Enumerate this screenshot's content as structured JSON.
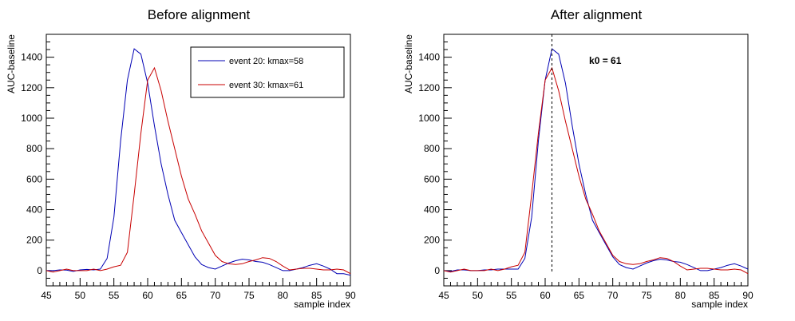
{
  "chart_data": [
    {
      "type": "line",
      "title": "Before alignment",
      "xlabel": "sample index",
      "ylabel": "AUC-baseline",
      "xlim": [
        45,
        90
      ],
      "ylim": [
        -100,
        1550
      ],
      "xticks": [
        45,
        50,
        55,
        60,
        65,
        70,
        75,
        80,
        85,
        90
      ],
      "yticks": [
        0,
        200,
        400,
        600,
        800,
        1000,
        1200,
        1400
      ],
      "legend_position": "top-right",
      "series": [
        {
          "name": "event 20: kmax=58",
          "color": "#0000b4",
          "x": [
            45,
            46,
            47,
            48,
            49,
            50,
            51,
            52,
            53,
            54,
            55,
            56,
            57,
            58,
            59,
            60,
            61,
            62,
            63,
            64,
            65,
            66,
            67,
            68,
            69,
            70,
            71,
            72,
            73,
            74,
            75,
            76,
            77,
            78,
            79,
            80,
            81,
            82,
            83,
            84,
            85,
            86,
            87,
            88,
            89,
            90
          ],
          "y": [
            0,
            0,
            5,
            3,
            -5,
            5,
            8,
            5,
            10,
            80,
            350,
            850,
            1250,
            1455,
            1420,
            1230,
            950,
            700,
            500,
            330,
            250,
            170,
            90,
            40,
            20,
            10,
            30,
            50,
            65,
            75,
            70,
            60,
            55,
            40,
            20,
            0,
            0,
            10,
            20,
            35,
            45,
            30,
            10,
            -20,
            -20,
            -30
          ]
        },
        {
          "name": "event 30: kmax=61",
          "color": "#c80000",
          "x": [
            45,
            46,
            47,
            48,
            49,
            50,
            51,
            52,
            53,
            54,
            55,
            56,
            57,
            58,
            59,
            60,
            61,
            62,
            63,
            64,
            65,
            66,
            67,
            68,
            69,
            70,
            71,
            72,
            73,
            74,
            75,
            76,
            77,
            78,
            79,
            80,
            81,
            82,
            83,
            84,
            85,
            86,
            87,
            88,
            89,
            90
          ],
          "y": [
            0,
            -10,
            0,
            10,
            0,
            0,
            0,
            10,
            0,
            10,
            25,
            35,
            120,
            500,
            900,
            1250,
            1330,
            1180,
            980,
            800,
            620,
            470,
            370,
            260,
            180,
            100,
            60,
            45,
            40,
            45,
            60,
            70,
            85,
            80,
            60,
            30,
            5,
            10,
            15,
            15,
            10,
            5,
            5,
            10,
            5,
            -20
          ]
        }
      ]
    },
    {
      "type": "line",
      "title": "After alignment",
      "xlabel": "sample index",
      "ylabel": "AUC-baseline",
      "xlim": [
        45,
        90
      ],
      "ylim": [
        -100,
        1550
      ],
      "xticks": [
        45,
        50,
        55,
        60,
        65,
        70,
        75,
        80,
        85,
        90
      ],
      "yticks": [
        0,
        200,
        400,
        600,
        800,
        1000,
        1200,
        1400
      ],
      "annotation": "k0 = 61",
      "annotation_position": [
        66.5,
        1355
      ],
      "vline_x": 61,
      "series": [
        {
          "color": "#0000b4",
          "x": [
            45,
            46,
            47,
            48,
            49,
            50,
            51,
            52,
            53,
            54,
            55,
            56,
            57,
            58,
            59,
            60,
            61,
            62,
            63,
            64,
            65,
            66,
            67,
            68,
            69,
            70,
            71,
            72,
            73,
            74,
            75,
            76,
            77,
            78,
            79,
            80,
            81,
            82,
            83,
            84,
            85,
            86,
            87,
            88,
            89,
            90
          ],
          "y": [
            0,
            -5,
            5,
            5,
            0,
            0,
            5,
            5,
            10,
            10,
            10,
            10,
            80,
            350,
            850,
            1250,
            1455,
            1420,
            1230,
            950,
            700,
            500,
            330,
            250,
            170,
            90,
            40,
            20,
            10,
            30,
            50,
            65,
            75,
            70,
            60,
            55,
            40,
            20,
            0,
            0,
            10,
            20,
            35,
            45,
            30,
            10
          ]
        },
        {
          "color": "#c80000",
          "x": [
            45,
            46,
            47,
            48,
            49,
            50,
            51,
            52,
            53,
            54,
            55,
            56,
            57,
            58,
            59,
            60,
            61,
            62,
            63,
            64,
            65,
            66,
            67,
            68,
            69,
            70,
            71,
            72,
            73,
            74,
            75,
            76,
            77,
            78,
            79,
            80,
            81,
            82,
            83,
            84,
            85,
            86,
            87,
            88,
            89,
            90
          ],
          "y": [
            0,
            -10,
            0,
            10,
            0,
            0,
            0,
            10,
            0,
            10,
            25,
            35,
            120,
            500,
            900,
            1250,
            1330,
            1180,
            980,
            800,
            620,
            470,
            370,
            260,
            180,
            100,
            60,
            45,
            40,
            45,
            60,
            70,
            85,
            80,
            60,
            30,
            5,
            10,
            15,
            15,
            10,
            5,
            5,
            10,
            5,
            -20
          ]
        }
      ]
    }
  ]
}
